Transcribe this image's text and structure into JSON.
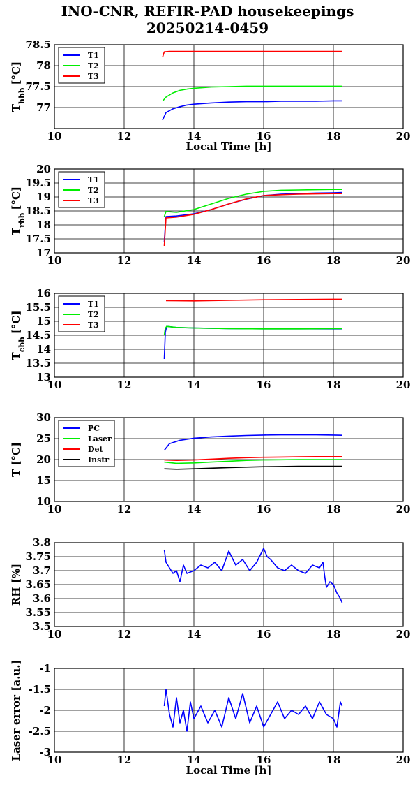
{
  "page": {
    "title_line1": "INO-CNR, REFIR-PAD housekeepings",
    "title_line2": "20250214-0459"
  },
  "chart_data": [
    {
      "type": "line",
      "id": "hbb",
      "ylabel_main": "T",
      "ylabel_sub": "hbb",
      "ylabel_unit": "[°C]",
      "xlabel": "Local Time [h]",
      "xlim": [
        10,
        20
      ],
      "xticks": [
        10,
        12,
        14,
        16,
        18,
        20
      ],
      "ylim": [
        76.5,
        78.5
      ],
      "yticks": [
        77,
        77.5,
        78,
        78.5
      ],
      "grid": true,
      "legend_position": "top-left",
      "series": [
        {
          "name": "T1",
          "color": "#0000ff",
          "x": [
            13.1,
            13.2,
            13.4,
            13.6,
            13.8,
            14.0,
            14.5,
            15.0,
            15.5,
            16.0,
            16.5,
            17.0,
            17.5,
            18.0,
            18.25
          ],
          "y": [
            76.7,
            76.88,
            76.97,
            77.02,
            77.06,
            77.08,
            77.11,
            77.13,
            77.14,
            77.14,
            77.15,
            77.15,
            77.15,
            77.16,
            77.16
          ]
        },
        {
          "name": "T2",
          "color": "#00ee00",
          "x": [
            13.1,
            13.2,
            13.4,
            13.6,
            13.8,
            14.0,
            14.5,
            15.0,
            15.5,
            16.0,
            16.5,
            17.0,
            17.5,
            18.0,
            18.25
          ],
          "y": [
            77.15,
            77.25,
            77.35,
            77.41,
            77.44,
            77.46,
            77.49,
            77.5,
            77.51,
            77.51,
            77.51,
            77.51,
            77.51,
            77.51,
            77.51
          ]
        },
        {
          "name": "T3",
          "color": "#ff0000",
          "x": [
            13.1,
            13.15,
            13.3,
            14.0,
            15.0,
            16.0,
            17.0,
            18.0,
            18.25
          ],
          "y": [
            78.2,
            78.33,
            78.34,
            78.34,
            78.34,
            78.34,
            78.34,
            78.34,
            78.34
          ]
        }
      ]
    },
    {
      "type": "line",
      "id": "rbb",
      "ylabel_main": "T",
      "ylabel_sub": "rbb",
      "ylabel_unit": "[°C]",
      "xlabel": "",
      "xlim": [
        10,
        20
      ],
      "xticks": [
        10,
        12,
        14,
        16,
        18,
        20
      ],
      "ylim": [
        17,
        20
      ],
      "yticks": [
        17,
        17.5,
        18,
        18.5,
        19,
        19.5,
        20
      ],
      "grid": true,
      "legend_position": "top-left",
      "series": [
        {
          "name": "T1",
          "color": "#0000ff",
          "x": [
            13.15,
            13.2,
            13.5,
            14.0,
            14.5,
            15.0,
            15.5,
            16.0,
            16.5,
            17.0,
            17.5,
            18.0,
            18.25
          ],
          "y": [
            17.4,
            18.3,
            18.32,
            18.4,
            18.55,
            18.75,
            18.92,
            19.05,
            19.1,
            19.12,
            19.14,
            19.15,
            19.16
          ]
        },
        {
          "name": "T2",
          "color": "#00ee00",
          "x": [
            13.15,
            13.2,
            13.5,
            14.0,
            14.5,
            15.0,
            15.5,
            16.0,
            16.5,
            17.0,
            17.5,
            18.0,
            18.25
          ],
          "y": [
            18.3,
            18.48,
            18.45,
            18.55,
            18.75,
            18.95,
            19.1,
            19.2,
            19.24,
            19.25,
            19.26,
            19.27,
            19.27
          ]
        },
        {
          "name": "T3",
          "color": "#ff0000",
          "x": [
            13.15,
            13.2,
            13.5,
            14.0,
            14.5,
            15.0,
            15.5,
            16.0,
            16.5,
            17.0,
            17.5,
            18.0,
            18.25
          ],
          "y": [
            17.25,
            18.25,
            18.28,
            18.38,
            18.55,
            18.75,
            18.93,
            19.05,
            19.08,
            19.1,
            19.11,
            19.12,
            19.12
          ]
        }
      ]
    },
    {
      "type": "line",
      "id": "cbb",
      "ylabel_main": "T",
      "ylabel_sub": "cbb",
      "ylabel_unit": "[°C]",
      "xlabel": "",
      "xlim": [
        10,
        20
      ],
      "xticks": [
        10,
        12,
        14,
        16,
        18,
        20
      ],
      "ylim": [
        13,
        16
      ],
      "yticks": [
        13,
        13.5,
        14,
        14.5,
        15,
        15.5,
        16
      ],
      "grid": true,
      "legend_position": "top-left",
      "series": [
        {
          "name": "T1",
          "color": "#0000ff",
          "x": [
            13.15,
            13.18,
            13.22,
            13.5,
            14.0,
            15.0,
            16.0,
            17.0,
            18.0,
            18.25
          ],
          "y": [
            13.65,
            14.6,
            14.82,
            14.78,
            14.76,
            14.74,
            14.73,
            14.73,
            14.73,
            14.73
          ]
        },
        {
          "name": "T2",
          "color": "#00ee00",
          "x": [
            13.15,
            13.18,
            13.22,
            13.5,
            14.0,
            15.0,
            16.0,
            17.0,
            18.0,
            18.25
          ],
          "y": [
            14.5,
            14.75,
            14.82,
            14.78,
            14.76,
            14.74,
            14.73,
            14.73,
            14.74,
            14.74
          ]
        },
        {
          "name": "T3",
          "color": "#ff0000",
          "x": [
            13.2,
            14.0,
            15.0,
            16.0,
            17.0,
            18.0,
            18.25
          ],
          "y": [
            15.74,
            15.73,
            15.75,
            15.77,
            15.78,
            15.79,
            15.79
          ]
        }
      ]
    },
    {
      "type": "line",
      "id": "temps",
      "ylabel_main": "T [°C]",
      "ylabel_sub": "",
      "ylabel_unit": "",
      "xlabel": "",
      "xlim": [
        10,
        20
      ],
      "xticks": [
        10,
        12,
        14,
        16,
        18,
        20
      ],
      "ylim": [
        10,
        30
      ],
      "yticks": [
        10,
        15,
        20,
        25,
        30
      ],
      "grid": true,
      "legend_position": "top-left",
      "series": [
        {
          "name": "PC",
          "color": "#0000ff",
          "x": [
            13.15,
            13.3,
            13.6,
            14.0,
            14.5,
            15.0,
            15.5,
            16.0,
            16.5,
            17.0,
            17.5,
            18.0,
            18.25
          ],
          "y": [
            22.2,
            23.8,
            24.6,
            25.1,
            25.4,
            25.6,
            25.75,
            25.85,
            25.9,
            25.9,
            25.9,
            25.85,
            25.8
          ]
        },
        {
          "name": "Laser",
          "color": "#00ee00",
          "x": [
            13.15,
            13.5,
            14.0,
            14.5,
            15.0,
            15.5,
            16.0,
            16.5,
            17.0,
            17.5,
            18.0,
            18.25
          ],
          "y": [
            19.4,
            19.1,
            19.2,
            19.4,
            19.6,
            19.8,
            19.9,
            19.95,
            20.0,
            20.0,
            20.0,
            20.0
          ]
        },
        {
          "name": "Det",
          "color": "#ff0000",
          "x": [
            13.15,
            13.5,
            14.0,
            14.5,
            15.0,
            15.5,
            16.0,
            16.5,
            17.0,
            17.5,
            18.0,
            18.25
          ],
          "y": [
            19.9,
            19.8,
            19.9,
            20.1,
            20.3,
            20.45,
            20.55,
            20.6,
            20.65,
            20.7,
            20.7,
            20.7
          ]
        },
        {
          "name": "Instr",
          "color": "#000000",
          "x": [
            13.15,
            13.5,
            14.0,
            14.5,
            15.0,
            15.5,
            16.0,
            16.5,
            17.0,
            17.5,
            18.0,
            18.25
          ],
          "y": [
            17.8,
            17.7,
            17.8,
            17.95,
            18.1,
            18.2,
            18.3,
            18.35,
            18.4,
            18.4,
            18.4,
            18.4
          ]
        }
      ]
    },
    {
      "type": "line",
      "id": "rh",
      "ylabel_main": "RH [%]",
      "ylabel_sub": "",
      "ylabel_unit": "",
      "xlabel": "",
      "xlim": [
        10,
        20
      ],
      "xticks": [
        10,
        12,
        14,
        16,
        18,
        20
      ],
      "ylim": [
        3.5,
        3.8
      ],
      "yticks": [
        3.5,
        3.55,
        3.6,
        3.65,
        3.7,
        3.75,
        3.8
      ],
      "grid": true,
      "legend_position": "none",
      "series": [
        {
          "name": "",
          "color": "#0000ff",
          "x": [
            13.15,
            13.2,
            13.3,
            13.4,
            13.5,
            13.6,
            13.7,
            13.8,
            14.0,
            14.2,
            14.4,
            14.6,
            14.8,
            15.0,
            15.2,
            15.4,
            15.6,
            15.8,
            16.0,
            16.1,
            16.2,
            16.4,
            16.6,
            16.8,
            17.0,
            17.2,
            17.4,
            17.6,
            17.7,
            17.75,
            17.8,
            17.9,
            18.0,
            18.1,
            18.2,
            18.25
          ],
          "y": [
            3.775,
            3.73,
            3.71,
            3.69,
            3.7,
            3.66,
            3.72,
            3.69,
            3.7,
            3.72,
            3.71,
            3.73,
            3.7,
            3.77,
            3.72,
            3.74,
            3.7,
            3.73,
            3.78,
            3.75,
            3.74,
            3.71,
            3.7,
            3.72,
            3.7,
            3.69,
            3.72,
            3.71,
            3.73,
            3.68,
            3.64,
            3.66,
            3.65,
            3.62,
            3.6,
            3.585
          ]
        }
      ]
    },
    {
      "type": "line",
      "id": "laser",
      "ylabel_main": "Laser error [a.u.]",
      "ylabel_sub": "",
      "ylabel_unit": "",
      "xlabel": "Local Time [h]",
      "xlim": [
        10,
        20
      ],
      "xticks": [
        10,
        12,
        14,
        16,
        18,
        20
      ],
      "ylim": [
        -3,
        -1
      ],
      "yticks": [
        -3,
        -2.5,
        -2,
        -1.5,
        -1
      ],
      "grid": true,
      "legend_position": "none",
      "series": [
        {
          "name": "",
          "color": "#0000ff",
          "x": [
            13.15,
            13.2,
            13.3,
            13.4,
            13.5,
            13.6,
            13.7,
            13.8,
            13.9,
            14.0,
            14.2,
            14.4,
            14.6,
            14.8,
            15.0,
            15.2,
            15.4,
            15.6,
            15.8,
            16.0,
            16.2,
            16.4,
            16.6,
            16.8,
            17.0,
            17.2,
            17.4,
            17.6,
            17.8,
            18.0,
            18.1,
            18.2,
            18.25
          ],
          "y": [
            -1.9,
            -1.5,
            -2.1,
            -2.4,
            -1.7,
            -2.3,
            -2.0,
            -2.5,
            -1.8,
            -2.2,
            -1.9,
            -2.3,
            -2.0,
            -2.4,
            -1.7,
            -2.2,
            -1.6,
            -2.3,
            -1.9,
            -2.4,
            -2.1,
            -1.8,
            -2.2,
            -2.0,
            -2.1,
            -1.9,
            -2.2,
            -1.8,
            -2.1,
            -2.2,
            -2.4,
            -1.8,
            -1.9
          ]
        }
      ]
    }
  ]
}
